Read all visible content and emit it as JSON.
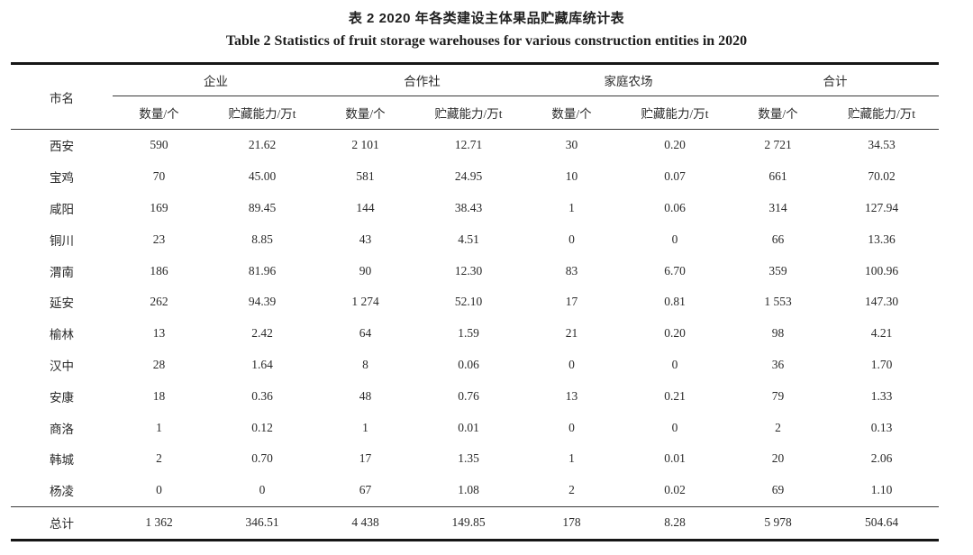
{
  "caption_zh": "表 2 2020 年各类建设主体果品贮藏库统计表",
  "caption_en": "Table 2 Statistics of fruit storage warehouses for various construction entities in 2020",
  "table": {
    "city_header": "市名",
    "groups": [
      {
        "label": "企业"
      },
      {
        "label": "合作社"
      },
      {
        "label": "家庭农场"
      },
      {
        "label": "合计"
      }
    ],
    "sub_headers": [
      "数量/个",
      "贮藏能力/万t"
    ],
    "rows": [
      {
        "city": "西安",
        "values": [
          "590",
          "21.62",
          "2 101",
          "12.71",
          "30",
          "0.20",
          "2 721",
          "34.53"
        ]
      },
      {
        "city": "宝鸡",
        "values": [
          "70",
          "45.00",
          "581",
          "24.95",
          "10",
          "0.07",
          "661",
          "70.02"
        ]
      },
      {
        "city": "咸阳",
        "values": [
          "169",
          "89.45",
          "144",
          "38.43",
          "1",
          "0.06",
          "314",
          "127.94"
        ]
      },
      {
        "city": "铜川",
        "values": [
          "23",
          "8.85",
          "43",
          "4.51",
          "0",
          "0",
          "66",
          "13.36"
        ]
      },
      {
        "city": "渭南",
        "values": [
          "186",
          "81.96",
          "90",
          "12.30",
          "83",
          "6.70",
          "359",
          "100.96"
        ]
      },
      {
        "city": "延安",
        "values": [
          "262",
          "94.39",
          "1 274",
          "52.10",
          "17",
          "0.81",
          "1 553",
          "147.30"
        ]
      },
      {
        "city": "榆林",
        "values": [
          "13",
          "2.42",
          "64",
          "1.59",
          "21",
          "0.20",
          "98",
          "4.21"
        ]
      },
      {
        "city": "汉中",
        "values": [
          "28",
          "1.64",
          "8",
          "0.06",
          "0",
          "0",
          "36",
          "1.70"
        ]
      },
      {
        "city": "安康",
        "values": [
          "18",
          "0.36",
          "48",
          "0.76",
          "13",
          "0.21",
          "79",
          "1.33"
        ]
      },
      {
        "city": "商洛",
        "values": [
          "1",
          "0.12",
          "1",
          "0.01",
          "0",
          "0",
          "2",
          "0.13"
        ]
      },
      {
        "city": "韩城",
        "values": [
          "2",
          "0.70",
          "17",
          "1.35",
          "1",
          "0.01",
          "20",
          "2.06"
        ]
      },
      {
        "city": "杨凌",
        "values": [
          "0",
          "0",
          "67",
          "1.08",
          "2",
          "0.02",
          "69",
          "1.10"
        ]
      }
    ],
    "total_row": {
      "city": "总计",
      "values": [
        "1 362",
        "346.51",
        "4 438",
        "149.85",
        "178",
        "8.28",
        "5 978",
        "504.64"
      ]
    }
  }
}
